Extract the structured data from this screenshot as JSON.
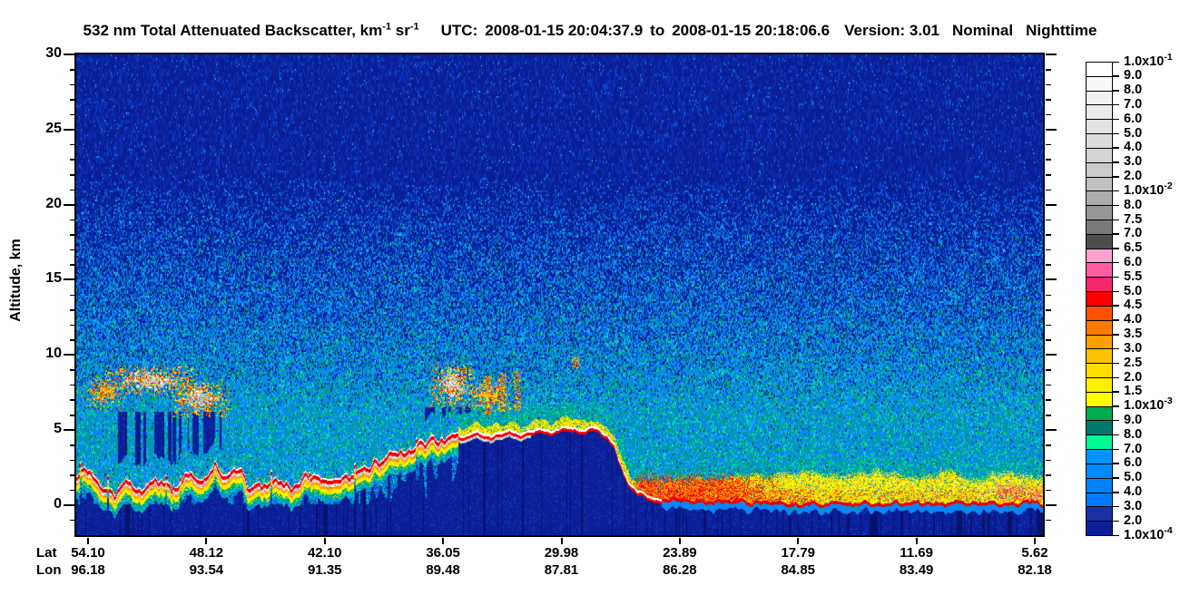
{
  "title": {
    "product": "532 nm Total Attenuated Backscatter, km",
    "km_exp": "-1",
    "sr": " sr",
    "sr_exp": "-1",
    "utc_label": "UTC:",
    "utc_start": "2008-01-15 20:04:37.9",
    "to_word": "to",
    "utc_end": "2008-01-15 20:18:06.6",
    "version": "Version: 3.01",
    "mode": "Nominal",
    "daynight": "Nighttime"
  },
  "yaxis": {
    "label": "Altitude, km",
    "ticks": [
      30,
      25,
      20,
      15,
      10,
      5,
      0
    ],
    "range": [
      -2,
      30
    ]
  },
  "xaxis": {
    "lat_label": "Lat",
    "lon_label": "Lon",
    "lat": [
      "54.10",
      "48.12",
      "42.10",
      "36.05",
      "29.98",
      "23.89",
      "17.79",
      "11.69",
      "5.62"
    ],
    "lon": [
      "96.18",
      "93.54",
      "91.35",
      "89.48",
      "87.81",
      "86.28",
      "84.85",
      "83.49",
      "82.18"
    ]
  },
  "chart_data": {
    "type": "heatmap",
    "title": "532 nm Total Attenuated Backscatter, km-1 sr-1",
    "utc_range": [
      "2008-01-15 20:04:37.9",
      "2008-01-15 20:18:06.6"
    ],
    "version": "3.01",
    "mode": "Nominal",
    "daynight": "Nighttime",
    "ylabel": "Altitude, km",
    "ylim": [
      -2,
      30
    ],
    "yticks": [
      0,
      5,
      10,
      15,
      20,
      25,
      30
    ],
    "x_lat": [
      54.1,
      48.12,
      42.1,
      36.05,
      29.98,
      23.89,
      17.79,
      11.69,
      5.62
    ],
    "x_lon": [
      96.18,
      93.54,
      91.35,
      89.48,
      87.81,
      86.28,
      84.85,
      83.49,
      82.18
    ],
    "colorbar": {
      "units": "km-1 sr-1",
      "labels": [
        [
          "1.0x10",
          "-1"
        ],
        [
          "9.0",
          ""
        ],
        [
          "8.0",
          ""
        ],
        [
          "7.0",
          ""
        ],
        [
          "6.0",
          ""
        ],
        [
          "5.0",
          ""
        ],
        [
          "4.0",
          ""
        ],
        [
          "3.0",
          ""
        ],
        [
          "2.0",
          ""
        ],
        [
          "1.0x10",
          "-2"
        ],
        [
          "8.0",
          ""
        ],
        [
          "7.5",
          ""
        ],
        [
          "7.0",
          ""
        ],
        [
          "6.5",
          ""
        ],
        [
          "6.0",
          ""
        ],
        [
          "5.5",
          ""
        ],
        [
          "5.0",
          ""
        ],
        [
          "4.5",
          ""
        ],
        [
          "4.0",
          ""
        ],
        [
          "3.5",
          ""
        ],
        [
          "3.0",
          ""
        ],
        [
          "2.5",
          ""
        ],
        [
          "2.0",
          ""
        ],
        [
          "1.5",
          ""
        ],
        [
          "1.0x10",
          "-3"
        ],
        [
          "9.0",
          ""
        ],
        [
          "8.0",
          ""
        ],
        [
          "7.0",
          ""
        ],
        [
          "6.0",
          ""
        ],
        [
          "5.0",
          ""
        ],
        [
          "4.0",
          ""
        ],
        [
          "3.0",
          ""
        ],
        [
          "2.0",
          ""
        ],
        [
          "1.0x10",
          "-4"
        ]
      ],
      "colors": [
        "#FFFFFF",
        "#F8F8F8",
        "#F1F1F1",
        "#EAEAEA",
        "#E3E3E3",
        "#DCDCDC",
        "#D4D4D4",
        "#CBCBCB",
        "#C1C1C1",
        "#ACACAC",
        "#979797",
        "#7A7A7A",
        "#4E4E4E",
        "#FFA0CE",
        "#FF5CA2",
        "#F5286E",
        "#FB0000",
        "#FF5200",
        "#FF7A00",
        "#FFA000",
        "#FFC200",
        "#FFDC00",
        "#FFEE00",
        "#FFFC00",
        "#00AA50",
        "#00786E",
        "#00FA96",
        "#0092FF",
        "#008AFF",
        "#0082FF",
        "#007AFF",
        "#1B2FA6",
        "#0C1F94"
      ]
    },
    "scene": {
      "palette": {
        "navy": "#0A1F96",
        "navy2": "#0D38C4",
        "navyD": "#06126E",
        "dodger": "#0887F8",
        "cyan2": "#30A8FF",
        "green": "#00AA5A",
        "mint": "#00F796",
        "teal": "#00786E",
        "yellow": "#FFF400",
        "yellow2": "#FFD400",
        "orange": "#FFA000",
        "orange2": "#FF6400",
        "red": "#FB0000",
        "red2": "#C40000",
        "pink": "#F5286E",
        "pink2": "#FF66AA",
        "pinkL": "#FFA8D0",
        "white": "#FFFFFF",
        "grayA": "#D2D2D2",
        "grayB": "#ABABAB",
        "grayC": "#818181"
      },
      "terrain": [
        [
          0.0,
          1.9
        ],
        [
          0.012,
          2.4
        ],
        [
          0.025,
          1.5
        ],
        [
          0.04,
          1.1
        ],
        [
          0.055,
          1.7
        ],
        [
          0.07,
          1.2
        ],
        [
          0.085,
          1.9
        ],
        [
          0.1,
          1.25
        ],
        [
          0.115,
          2.0
        ],
        [
          0.13,
          1.5
        ],
        [
          0.143,
          2.9
        ],
        [
          0.152,
          2.1
        ],
        [
          0.163,
          2.8
        ],
        [
          0.177,
          1.6
        ],
        [
          0.192,
          1.35
        ],
        [
          0.207,
          2.1
        ],
        [
          0.222,
          1.5
        ],
        [
          0.242,
          2.3
        ],
        [
          0.262,
          1.6
        ],
        [
          0.282,
          2.0
        ],
        [
          0.302,
          2.7
        ],
        [
          0.322,
          3.3
        ],
        [
          0.342,
          3.9
        ],
        [
          0.362,
          4.3
        ],
        [
          0.382,
          4.6
        ],
        [
          0.4,
          4.5
        ],
        [
          0.415,
          4.9
        ],
        [
          0.43,
          4.6
        ],
        [
          0.445,
          5.0
        ],
        [
          0.46,
          4.7
        ],
        [
          0.475,
          5.1
        ],
        [
          0.49,
          4.8
        ],
        [
          0.505,
          5.2
        ],
        [
          0.52,
          4.9
        ],
        [
          0.535,
          5.1
        ],
        [
          0.548,
          4.7
        ],
        [
          0.556,
          4.1
        ],
        [
          0.562,
          2.9
        ],
        [
          0.57,
          1.6
        ],
        [
          0.58,
          0.9
        ],
        [
          0.592,
          0.5
        ],
        [
          0.605,
          0.3,
          1.5
        ],
        [
          0.64,
          0.2,
          1.8
        ],
        [
          0.68,
          0.15,
          2.0
        ],
        [
          0.72,
          0.12,
          2.15
        ],
        [
          0.755,
          0.1,
          2.3
        ],
        [
          0.775,
          0.1,
          1.95
        ],
        [
          0.805,
          0.1,
          2.2
        ],
        [
          0.84,
          0.1,
          2.4
        ],
        [
          0.87,
          0.1,
          2.1
        ],
        [
          0.9,
          0.1,
          2.3
        ],
        [
          0.93,
          0.1,
          2.0
        ],
        [
          0.96,
          0.1,
          2.2
        ],
        [
          1.0,
          0.1,
          2.1
        ]
      ],
      "clouds": [
        {
          "x0": 0.004,
          "x1": 0.05,
          "a0": 6.2,
          "a1": 8.7,
          "type": "fringe",
          "seed": 1
        },
        {
          "x0": 0.028,
          "x1": 0.128,
          "a0": 7.3,
          "a1": 9.3,
          "type": "gray",
          "seed": 2
        },
        {
          "x0": 0.098,
          "x1": 0.158,
          "a0": 5.8,
          "a1": 8.4,
          "type": "gray",
          "seed": 3
        },
        {
          "x0": 0.365,
          "x1": 0.412,
          "a0": 6.4,
          "a1": 9.6,
          "type": "gray",
          "seed": 4
        },
        {
          "x0": 0.402,
          "x1": 0.452,
          "a0": 6.1,
          "a1": 8.6,
          "type": "fringe",
          "seed": 5
        }
      ],
      "shafts": [
        {
          "x0": 0.038,
          "x1": 0.15,
          "a1": 6.2,
          "seed": 6
        },
        {
          "x0": 0.36,
          "x1": 0.408,
          "a1": 6.5,
          "seed": 7
        }
      ],
      "streaks": [
        {
          "f": 0.425,
          "a0": 6.0,
          "a1": 8.6
        },
        {
          "f": 0.441,
          "a0": 6.2,
          "a1": 8.8
        },
        {
          "f": 0.456,
          "a0": 6.3,
          "a1": 8.9
        },
        {
          "f": 0.516,
          "a0": 9.1,
          "a1": 9.9
        }
      ],
      "dust": {
        "x0": 0.57,
        "x1": 0.735,
        "top": 2.0
      },
      "pink_patch": {
        "x0": 0.952,
        "x1": 1.0,
        "a0": 0.3,
        "a1": 1.35
      },
      "graydots": {
        "x0": 0.7,
        "scale": 0.3
      },
      "regimes": {
        "plateau_start": 0.395,
        "plateau_end": 0.605,
        "grayband_end": 0.47
      }
    }
  }
}
